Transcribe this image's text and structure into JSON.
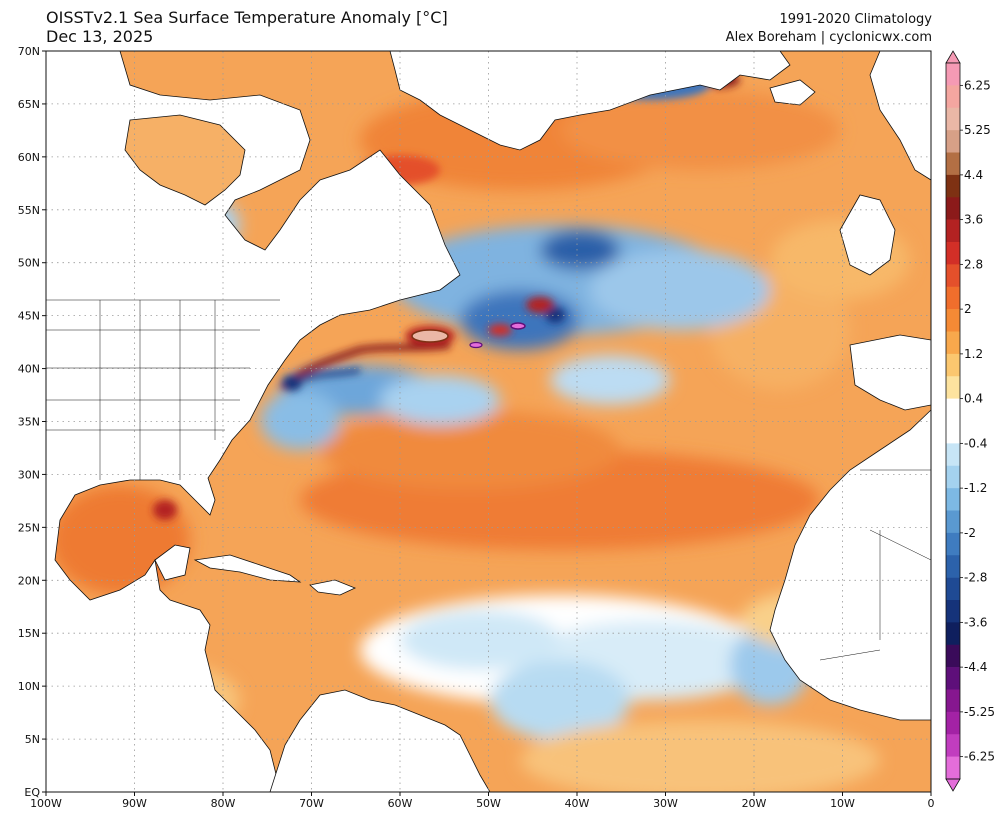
{
  "header": {
    "title_line1": "OISSTv2.1 Sea Surface Temperature Anomaly [°C]",
    "title_line2": "Dec 13, 2025",
    "climatology": "1991-2020 Climatology",
    "credit": "Alex Boreham | cyclonicwx.com"
  },
  "map": {
    "lon_range": [
      -100,
      0
    ],
    "lat_range": [
      0,
      70
    ],
    "lat_labels": [
      "70N",
      "65N",
      "60N",
      "55N",
      "50N",
      "45N",
      "40N",
      "35N",
      "30N",
      "25N",
      "20N",
      "15N",
      "10N",
      "5N",
      "EQ"
    ],
    "lon_labels": [
      "100W",
      "90W",
      "80W",
      "70W",
      "60W",
      "50W",
      "40W",
      "30W",
      "20W",
      "10W",
      "0"
    ]
  },
  "colorbar": {
    "labels": [
      "6.25",
      "5.25",
      "4.4",
      "3.6",
      "2.8",
      "2",
      "1.2",
      "0.4",
      "-0.4",
      "-1.2",
      "-2",
      "-2.8",
      "-3.6",
      "-4.4",
      "-5.25",
      "-6.25"
    ],
    "colors": [
      "#f59ab4",
      "#f4a6a0",
      "#eab7a6",
      "#d7a087",
      "#b36f44",
      "#7e3113",
      "#8b1a1a",
      "#b32222",
      "#d22f27",
      "#e4502b",
      "#f06e2c",
      "#f58a35",
      "#f8a84c",
      "#fbc76f",
      "#fde39f",
      "#ffffff",
      "#ffffff",
      "#c7e5f6",
      "#a4d2ef",
      "#7db9e4",
      "#5a99d1",
      "#3f7cc0",
      "#2c62ab",
      "#1f4a94",
      "#15337a",
      "#0f1f5e",
      "#3a0b5a",
      "#5e0f7a",
      "#86178f",
      "#a322a5",
      "#c13dbf",
      "#e46dda"
    ]
  }
}
